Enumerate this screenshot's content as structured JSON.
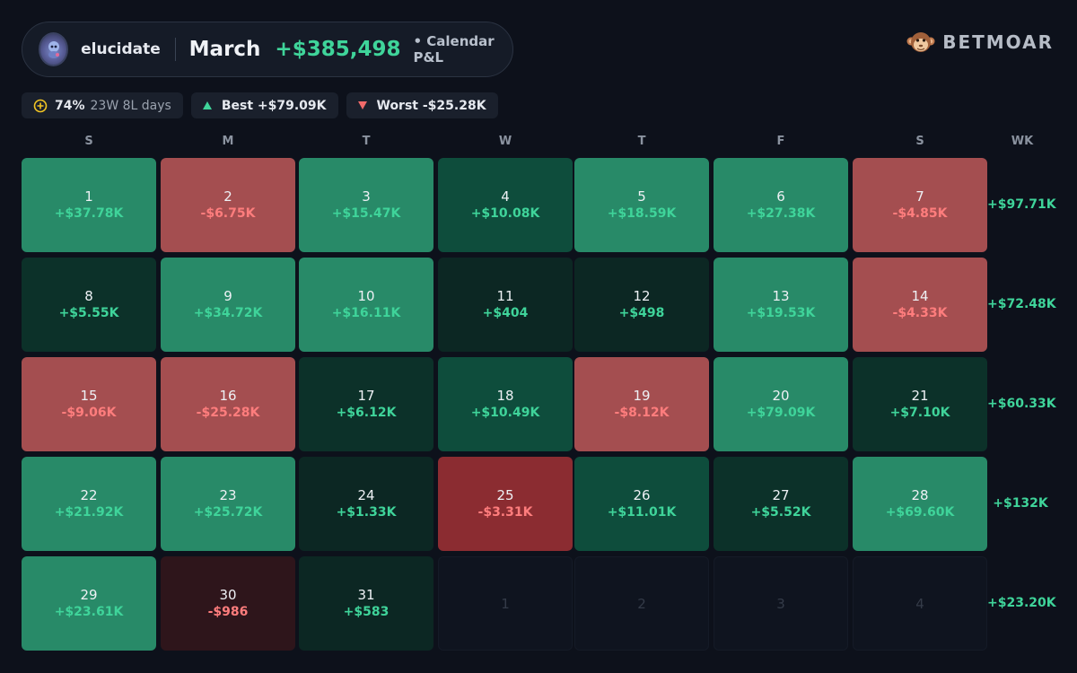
{
  "header": {
    "username": "elucidate",
    "month": "March",
    "total": "+$385,498",
    "subtitle": "• Calendar P&L"
  },
  "brand": {
    "name": "BETMOAR"
  },
  "stats": {
    "win_rate": "74%",
    "record": "23W 8L days",
    "best": "Best +$79.09K",
    "worst": "Worst -$25.28K"
  },
  "weekdays": [
    "S",
    "M",
    "T",
    "W",
    "T",
    "F",
    "S"
  ],
  "week_header": "WK",
  "colors": {
    "positive": "#3fd49a",
    "negative": "#ff7d7d",
    "background": "#0d111b"
  },
  "weeks": [
    {
      "total": "+$97.71K",
      "days": [
        {
          "day": "1",
          "pnl": "+$37.78K",
          "value": 37780
        },
        {
          "day": "2",
          "pnl": "-$6.75K",
          "value": -6750
        },
        {
          "day": "3",
          "pnl": "+$15.47K",
          "value": 15470
        },
        {
          "day": "4",
          "pnl": "+$10.08K",
          "value": 10080
        },
        {
          "day": "5",
          "pnl": "+$18.59K",
          "value": 18590
        },
        {
          "day": "6",
          "pnl": "+$27.38K",
          "value": 27380
        },
        {
          "day": "7",
          "pnl": "-$4.85K",
          "value": -4850
        }
      ]
    },
    {
      "total": "+$72.48K",
      "days": [
        {
          "day": "8",
          "pnl": "+$5.55K",
          "value": 5550
        },
        {
          "day": "9",
          "pnl": "+$34.72K",
          "value": 34720
        },
        {
          "day": "10",
          "pnl": "+$16.11K",
          "value": 16110
        },
        {
          "day": "11",
          "pnl": "+$404",
          "value": 404
        },
        {
          "day": "12",
          "pnl": "+$498",
          "value": 498
        },
        {
          "day": "13",
          "pnl": "+$19.53K",
          "value": 19530
        },
        {
          "day": "14",
          "pnl": "-$4.33K",
          "value": -4330
        }
      ]
    },
    {
      "total": "+$60.33K",
      "days": [
        {
          "day": "15",
          "pnl": "-$9.06K",
          "value": -9060
        },
        {
          "day": "16",
          "pnl": "-$25.28K",
          "value": -25280
        },
        {
          "day": "17",
          "pnl": "+$6.12K",
          "value": 6120
        },
        {
          "day": "18",
          "pnl": "+$10.49K",
          "value": 10490
        },
        {
          "day": "19",
          "pnl": "-$8.12K",
          "value": -8120
        },
        {
          "day": "20",
          "pnl": "+$79.09K",
          "value": 79090
        },
        {
          "day": "21",
          "pnl": "+$7.10K",
          "value": 7100
        }
      ]
    },
    {
      "total": "+$132K",
      "days": [
        {
          "day": "22",
          "pnl": "+$21.92K",
          "value": 21920
        },
        {
          "day": "23",
          "pnl": "+$25.72K",
          "value": 25720
        },
        {
          "day": "24",
          "pnl": "+$1.33K",
          "value": 1330
        },
        {
          "day": "25",
          "pnl": "-$3.31K",
          "value": -3310
        },
        {
          "day": "26",
          "pnl": "+$11.01K",
          "value": 11010
        },
        {
          "day": "27",
          "pnl": "+$5.52K",
          "value": 5520
        },
        {
          "day": "28",
          "pnl": "+$69.60K",
          "value": 69600
        }
      ]
    },
    {
      "total": "+$23.20K",
      "days": [
        {
          "day": "29",
          "pnl": "+$23.61K",
          "value": 23610
        },
        {
          "day": "30",
          "pnl": "-$986",
          "value": -986
        },
        {
          "day": "31",
          "pnl": "+$583",
          "value": 583
        },
        {
          "day": "1",
          "pnl": "",
          "value": null
        },
        {
          "day": "2",
          "pnl": "",
          "value": null
        },
        {
          "day": "3",
          "pnl": "",
          "value": null
        },
        {
          "day": "4",
          "pnl": "",
          "value": null
        }
      ]
    }
  ]
}
